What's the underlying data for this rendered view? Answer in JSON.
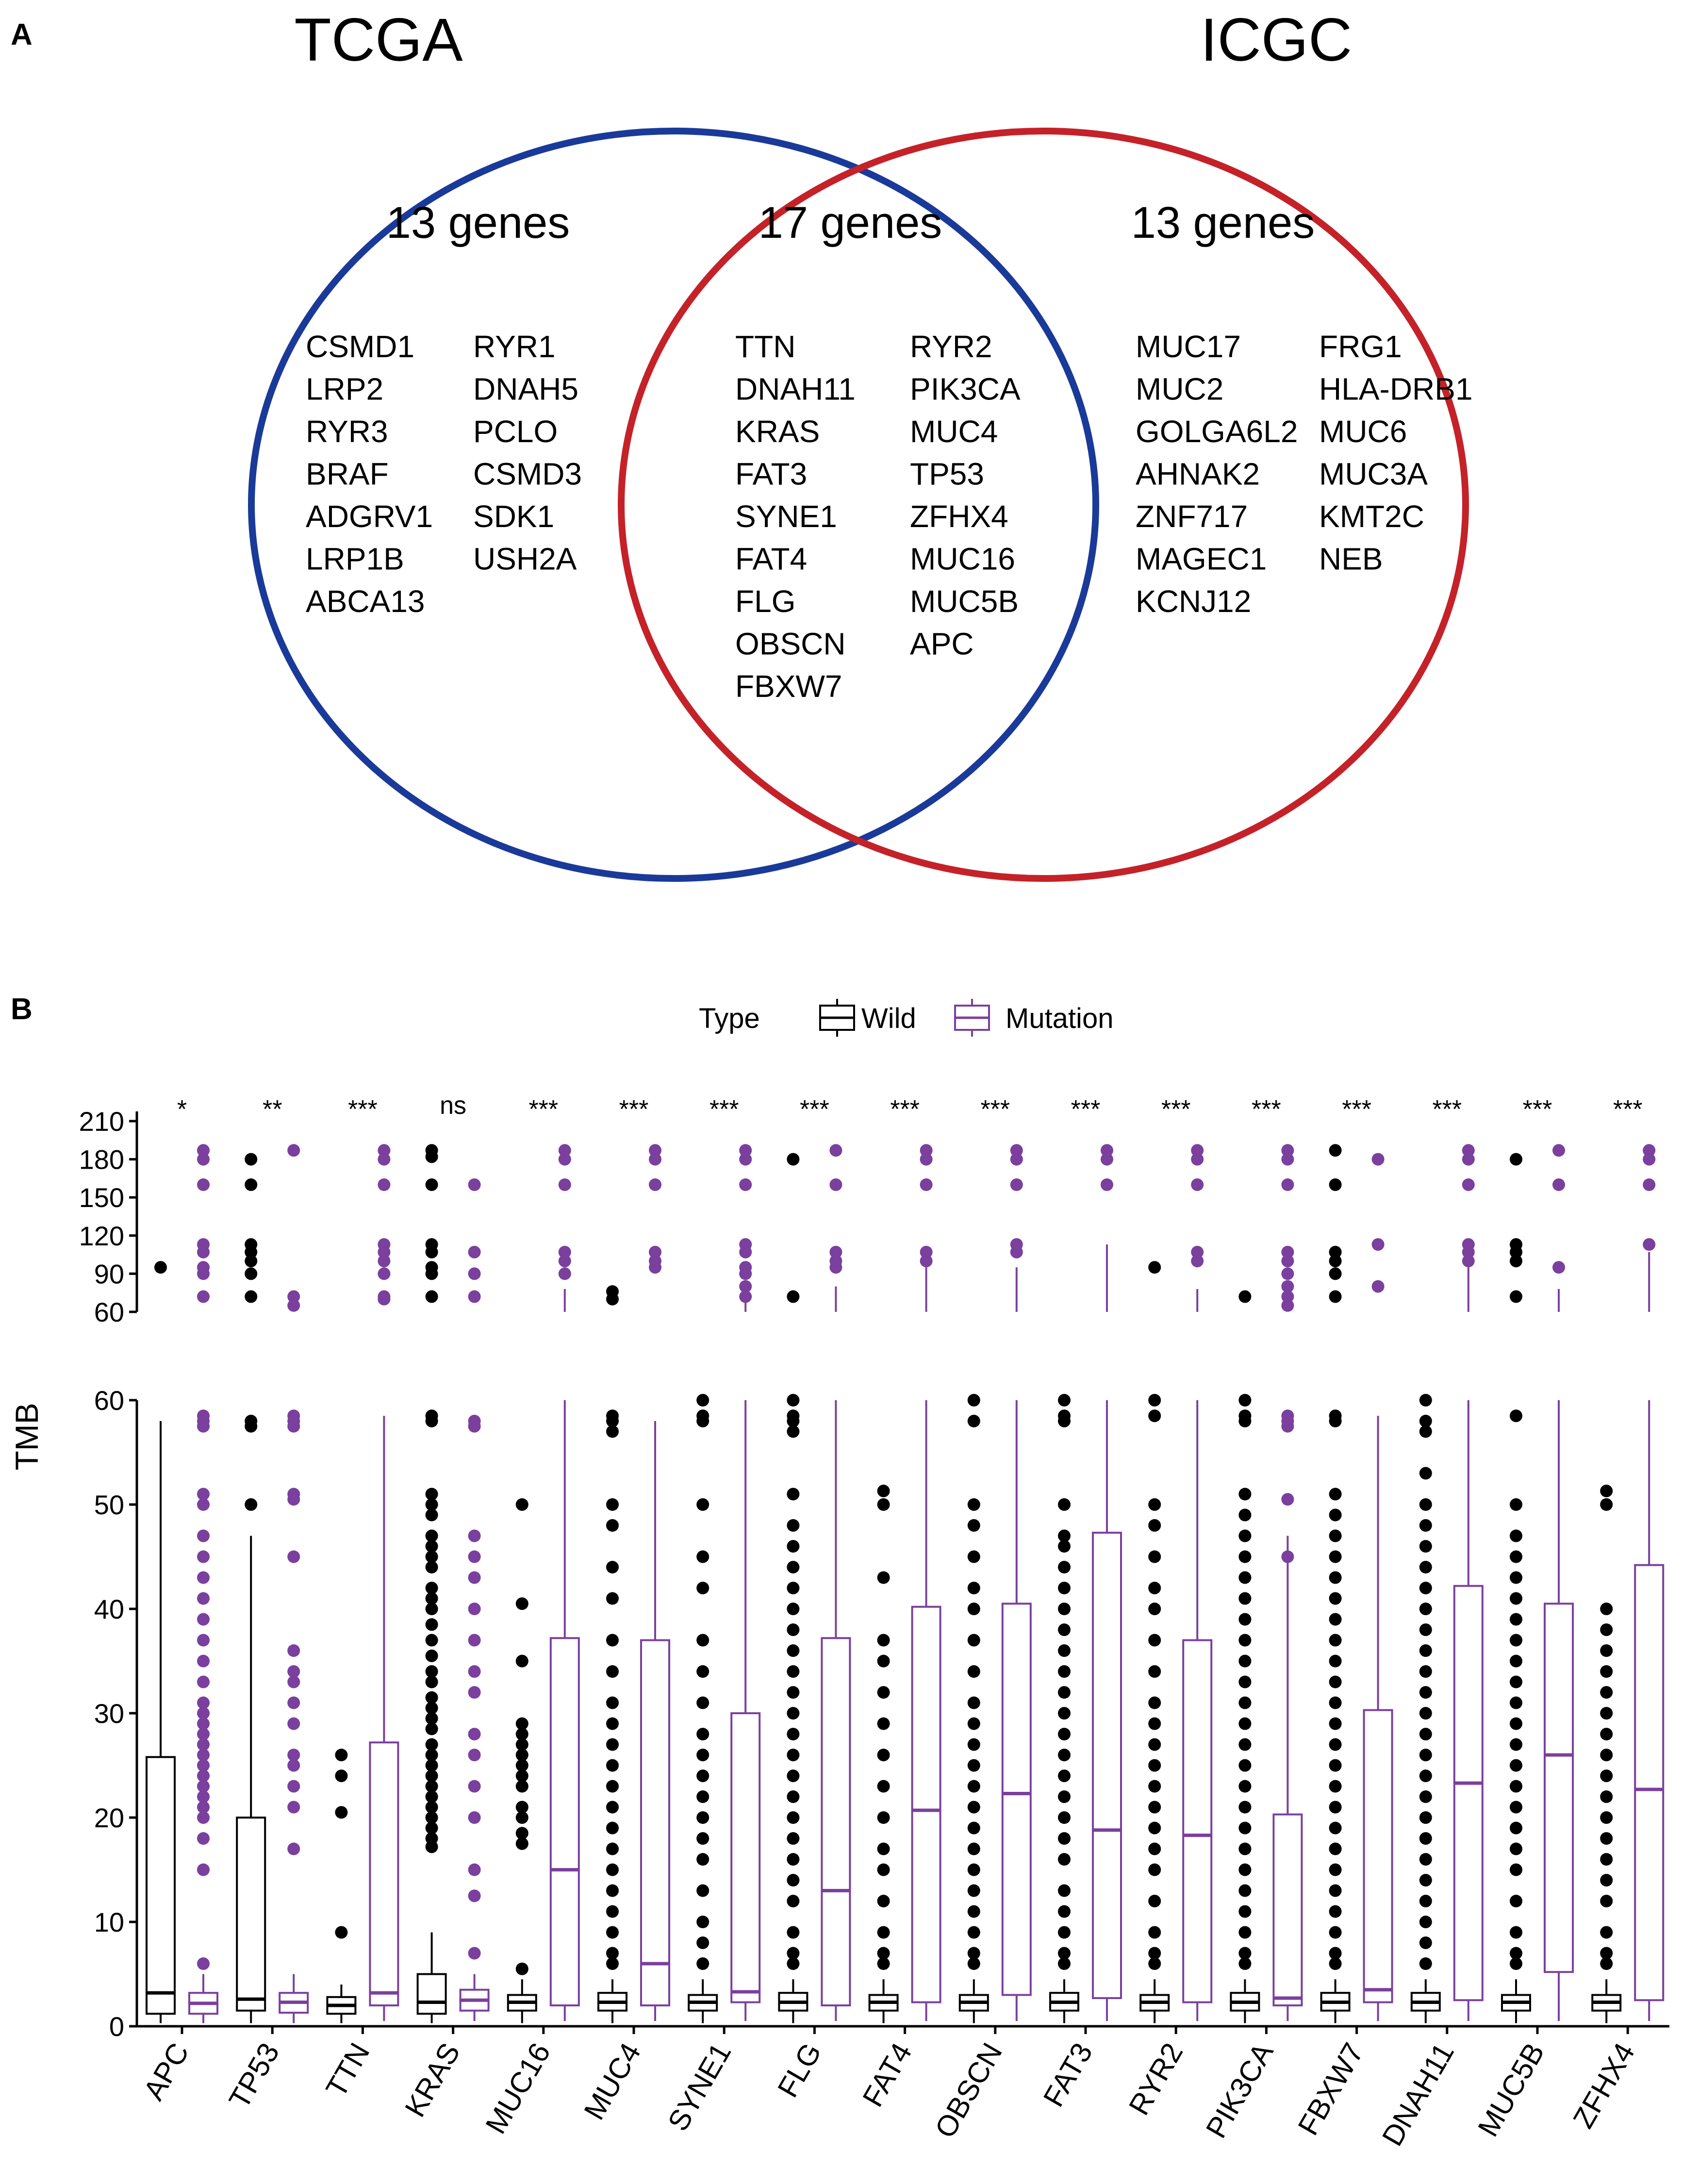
{
  "panels": {
    "a_letter": "A",
    "b_letter": "B"
  },
  "venn": {
    "left_title": "TCGA",
    "right_title": "ICGC",
    "left_color": "#1a3a99",
    "right_color": "#c42228",
    "left_count": "13 genes",
    "middle_count": "17 genes",
    "right_count": "13 genes",
    "left_genes_col1": [
      "CSMD1",
      "LRP2",
      "RYR3",
      "BRAF",
      "ADGRV1",
      "LRP1B",
      "ABCA13"
    ],
    "left_genes_col2": [
      "RYR1",
      "DNAH5",
      "PCLO",
      "CSMD3",
      "SDK1",
      "USH2A"
    ],
    "middle_genes_col1": [
      "TTN",
      "DNAH11",
      "KRAS",
      "FAT3",
      "SYNE1",
      "FAT4",
      "FLG",
      "OBSCN",
      "FBXW7"
    ],
    "middle_genes_col2": [
      "RYR2",
      "PIK3CA",
      "MUC4",
      "TP53",
      "ZFHX4",
      "MUC16",
      "MUC5B",
      "APC"
    ],
    "right_genes_col1": [
      "MUC17",
      "MUC2",
      "GOLGA6L2",
      "AHNAK2",
      "ZNF717",
      "MAGEC1",
      "KCNJ12"
    ],
    "right_genes_col2": [
      "FRG1",
      "HLA-DRB1",
      "MUC6",
      "MUC3A",
      "KMT2C",
      "NEB"
    ]
  },
  "chart_data": {
    "type": "box",
    "ylabel": "TMB",
    "legend": {
      "title": "Type",
      "entries": [
        "Wild",
        "Mutation"
      ],
      "position": "top"
    },
    "colors": {
      "Wild": "#000000",
      "Mutation": "#7b3f9e"
    },
    "broken_axis": true,
    "upper_ylim": [
      60,
      210
    ],
    "upper_ticks": [
      "60",
      "90",
      "120",
      "150",
      "180",
      "210"
    ],
    "lower_ylim": [
      0,
      60
    ],
    "lower_ticks": [
      "0",
      "10",
      "20",
      "30",
      "40",
      "50",
      "60"
    ],
    "categories": [
      "APC",
      "TP53",
      "TTN",
      "KRAS",
      "MUC16",
      "MUC4",
      "SYNE1",
      "FLG",
      "FAT4",
      "OBSCN",
      "FAT3",
      "RYR2",
      "PIK3CA",
      "FBXW7",
      "DNAH11",
      "MUC5B",
      "ZFHX4"
    ],
    "significance": [
      "*",
      "**",
      "***",
      "ns",
      "***",
      "***",
      "***",
      "***",
      "***",
      "***",
      "***",
      "***",
      "***",
      "***",
      "***",
      "***",
      "***"
    ],
    "wild_box": [
      {
        "q1": 1.2,
        "median": 3.2,
        "q3": 25.8,
        "whisker_low": 0.3,
        "whisker_high": 58
      },
      {
        "q1": 1.5,
        "median": 2.6,
        "q3": 20,
        "whisker_low": 0.3,
        "whisker_high": 47
      },
      {
        "q1": 1.2,
        "median": 2,
        "q3": 2.8,
        "whisker_low": 0.3,
        "whisker_high": 4
      },
      {
        "q1": 1.2,
        "median": 2.3,
        "q3": 5,
        "whisker_low": 0.3,
        "whisker_high": 9
      },
      {
        "q1": 1.5,
        "median": 2.3,
        "q3": 3,
        "whisker_low": 0.3,
        "whisker_high": 4.5
      },
      {
        "q1": 1.5,
        "median": 2.3,
        "q3": 3.2,
        "whisker_low": 0.3,
        "whisker_high": 4.5
      },
      {
        "q1": 1.5,
        "median": 2.3,
        "q3": 3,
        "whisker_low": 0.3,
        "whisker_high": 4.5
      },
      {
        "q1": 1.5,
        "median": 2.3,
        "q3": 3.2,
        "whisker_low": 0.3,
        "whisker_high": 4.5
      },
      {
        "q1": 1.5,
        "median": 2.3,
        "q3": 3,
        "whisker_low": 0.3,
        "whisker_high": 4.5
      },
      {
        "q1": 1.5,
        "median": 2.3,
        "q3": 3,
        "whisker_low": 0.3,
        "whisker_high": 4.5
      },
      {
        "q1": 1.5,
        "median": 2.3,
        "q3": 3.2,
        "whisker_low": 0.3,
        "whisker_high": 4.5
      },
      {
        "q1": 1.5,
        "median": 2.3,
        "q3": 3,
        "whisker_low": 0.3,
        "whisker_high": 4.5
      },
      {
        "q1": 1.5,
        "median": 2.3,
        "q3": 3.2,
        "whisker_low": 0.3,
        "whisker_high": 4.5
      },
      {
        "q1": 1.5,
        "median": 2.3,
        "q3": 3.2,
        "whisker_low": 0.3,
        "whisker_high": 4.5
      },
      {
        "q1": 1.5,
        "median": 2.3,
        "q3": 3.2,
        "whisker_low": 0.3,
        "whisker_high": 4.5
      },
      {
        "q1": 1.5,
        "median": 2.3,
        "q3": 3,
        "whisker_low": 0.3,
        "whisker_high": 4.5
      },
      {
        "q1": 1.5,
        "median": 2.3,
        "q3": 3,
        "whisker_low": 0.3,
        "whisker_high": 4.5
      }
    ],
    "mutation_box": [
      {
        "q1": 1.2,
        "median": 2.2,
        "q3": 3.2,
        "whisker_low": 0.3,
        "whisker_high": 5
      },
      {
        "q1": 1.3,
        "median": 2.3,
        "q3": 3.2,
        "whisker_low": 0.3,
        "whisker_high": 5
      },
      {
        "q1": 2,
        "median": 3.2,
        "q3": 27.2,
        "whisker_low": 0.5,
        "whisker_high": 58.5
      },
      {
        "q1": 1.5,
        "median": 2.5,
        "q3": 3.5,
        "whisker_low": 0.5,
        "whisker_high": 5
      },
      {
        "q1": 2,
        "median": 15,
        "q3": 37.2,
        "whisker_low": 0.5,
        "whisker_high": 78
      },
      {
        "q1": 2,
        "median": 6,
        "q3": 37,
        "whisker_low": 0.5,
        "whisker_high": 58
      },
      {
        "q1": 2.3,
        "median": 3.3,
        "q3": 30,
        "whisker_low": 0.5,
        "whisker_high": 75
      },
      {
        "q1": 2,
        "median": 13,
        "q3": 37.2,
        "whisker_low": 0.5,
        "whisker_high": 80
      },
      {
        "q1": 2.3,
        "median": 20.7,
        "q3": 40.2,
        "whisker_low": 0.5,
        "whisker_high": 95
      },
      {
        "q1": 3,
        "median": 22.3,
        "q3": 40.5,
        "whisker_low": 0.5,
        "whisker_high": 95
      },
      {
        "q1": 2.7,
        "median": 18.8,
        "q3": 47.3,
        "whisker_low": 0.5,
        "whisker_high": 113
      },
      {
        "q1": 2.3,
        "median": 18.3,
        "q3": 37,
        "whisker_low": 0.5,
        "whisker_high": 78
      },
      {
        "q1": 2,
        "median": 2.7,
        "q3": 20.3,
        "whisker_low": 0.5,
        "whisker_high": 47
      },
      {
        "q1": 2.3,
        "median": 3.5,
        "q3": 30.3,
        "whisker_low": 0.5,
        "whisker_high": 58.5
      },
      {
        "q1": 2.5,
        "median": 23.3,
        "q3": 42.2,
        "whisker_low": 0.5,
        "whisker_high": 95
      },
      {
        "q1": 5.2,
        "median": 26,
        "q3": 40.5,
        "whisker_low": 0.5,
        "whisker_high": 78
      },
      {
        "q1": 2.5,
        "median": 22.7,
        "q3": 44.2,
        "whisker_low": 0.5,
        "whisker_high": 107
      }
    ],
    "wild_outliers": [
      [
        95
      ],
      [
        180,
        160,
        113,
        107,
        100,
        90,
        72,
        58,
        57.5,
        50
      ],
      [
        26,
        24,
        20.5,
        9
      ],
      [
        187,
        182,
        160,
        113,
        107,
        95,
        90,
        72,
        58.5,
        58,
        51,
        50,
        49,
        47,
        46,
        45,
        44,
        42,
        41,
        40,
        38.5,
        37,
        35.5,
        34,
        33,
        31.5,
        30.5,
        29.5,
        28.5,
        27,
        26,
        25,
        24,
        23,
        22,
        21,
        20,
        19,
        18,
        17.2
      ],
      [
        50,
        40.5,
        35,
        29,
        28,
        27,
        26,
        25,
        24,
        23,
        21,
        20,
        18.5,
        17.5,
        5.5
      ],
      [
        76,
        70,
        58.5,
        58,
        57,
        50,
        48,
        44,
        41,
        37,
        34,
        31,
        29,
        27,
        25,
        23,
        21,
        19,
        17,
        15,
        13,
        11,
        9,
        7,
        6
      ],
      [
        60,
        58.5,
        58,
        50,
        45,
        42,
        37,
        34,
        31,
        28,
        26,
        24,
        22,
        20,
        18,
        16,
        13,
        10,
        8,
        6
      ],
      [
        180,
        72,
        60,
        58.5,
        58,
        57,
        51,
        48,
        46,
        44,
        42,
        40,
        38,
        36,
        34,
        32,
        30,
        28,
        26,
        24,
        22,
        20,
        18,
        16,
        14,
        12,
        9,
        7,
        6
      ],
      [
        51.3,
        50,
        43,
        37,
        35,
        32,
        29,
        26,
        23,
        20,
        17,
        15,
        12,
        9,
        7,
        6
      ],
      [
        60,
        58,
        50,
        48,
        45,
        42,
        40,
        37,
        34,
        31,
        29,
        27,
        25,
        23,
        21,
        19,
        17,
        15,
        13,
        11,
        9,
        7,
        6
      ],
      [
        60,
        58.5,
        58,
        50,
        47,
        46,
        44,
        42,
        40,
        38,
        36,
        34,
        32,
        30,
        28,
        26,
        24,
        22,
        20,
        18,
        16,
        13,
        11,
        9,
        7,
        6
      ],
      [
        95,
        60,
        58.5,
        50,
        48,
        45,
        42,
        40,
        37,
        34,
        31,
        29,
        27,
        25,
        23,
        21,
        19,
        17,
        15,
        12,
        9,
        7,
        6
      ],
      [
        72,
        60,
        58.5,
        58,
        51,
        49,
        47,
        45,
        43,
        41,
        39,
        37,
        35,
        33,
        31,
        29,
        27,
        25,
        23,
        21,
        19,
        17,
        15,
        13,
        11,
        9,
        7,
        6
      ],
      [
        187,
        160,
        107,
        100,
        90,
        72,
        58.5,
        58,
        51,
        49,
        47,
        45,
        43,
        41,
        39,
        37,
        35,
        33,
        31,
        29,
        27,
        25,
        23,
        21,
        19,
        17,
        15,
        13,
        11,
        9,
        7,
        6
      ],
      [
        60,
        58,
        57,
        53,
        50,
        48,
        46,
        44,
        42,
        40,
        38,
        36,
        34,
        32,
        30,
        28,
        26,
        24,
        22,
        20,
        18,
        16,
        14,
        12,
        10,
        8,
        6
      ],
      [
        180,
        113,
        107,
        100,
        72,
        58.5,
        50,
        47,
        45,
        43,
        41,
        39,
        37,
        35,
        33,
        31,
        29,
        27,
        25,
        23,
        21,
        19,
        17,
        15,
        12,
        9,
        7,
        6
      ],
      [
        51.3,
        50,
        40,
        38,
        36,
        34,
        32,
        30,
        28,
        26,
        24,
        22,
        20,
        18,
        16,
        14,
        12,
        9,
        7,
        6
      ]
    ],
    "mutation_outliers": [
      [
        187,
        180,
        160,
        113,
        107,
        95,
        90,
        72,
        58.5,
        58,
        57.5,
        51,
        50,
        47,
        45,
        43,
        41,
        39,
        37,
        35,
        33,
        31,
        30,
        29,
        28,
        27,
        26,
        25,
        24,
        23,
        22,
        21,
        20,
        18,
        15,
        6
      ],
      [
        187,
        72,
        65,
        58.5,
        58,
        57.5,
        51,
        50.5,
        45,
        36,
        34,
        33,
        31,
        29,
        26,
        25,
        23,
        21,
        17
      ],
      [
        187,
        180,
        160,
        113,
        107,
        100,
        90,
        72,
        70
      ],
      [
        160,
        107,
        90,
        72,
        58,
        57.5,
        47,
        45,
        43,
        40,
        37,
        34,
        32,
        28,
        26,
        23,
        20,
        15,
        12.5,
        7
      ],
      [
        187,
        180,
        160,
        107,
        100,
        90
      ],
      [
        187,
        180,
        160,
        107,
        100,
        95
      ],
      [
        187,
        180,
        160,
        113,
        107,
        95,
        90,
        80,
        72
      ],
      [
        187,
        160,
        107,
        100,
        95
      ],
      [
        187,
        180,
        160,
        107,
        100
      ],
      [
        187,
        180,
        160,
        113,
        107
      ],
      [
        187,
        180,
        160
      ],
      [
        187,
        180,
        160,
        107,
        100
      ],
      [
        187,
        180,
        160,
        107,
        100,
        90,
        80,
        72,
        65,
        58.5,
        58,
        57.5,
        50.5,
        45
      ],
      [
        180,
        113,
        80
      ],
      [
        187,
        180,
        160,
        113,
        107,
        100
      ],
      [
        187,
        160,
        95
      ],
      [
        187,
        180,
        160,
        113
      ]
    ]
  }
}
